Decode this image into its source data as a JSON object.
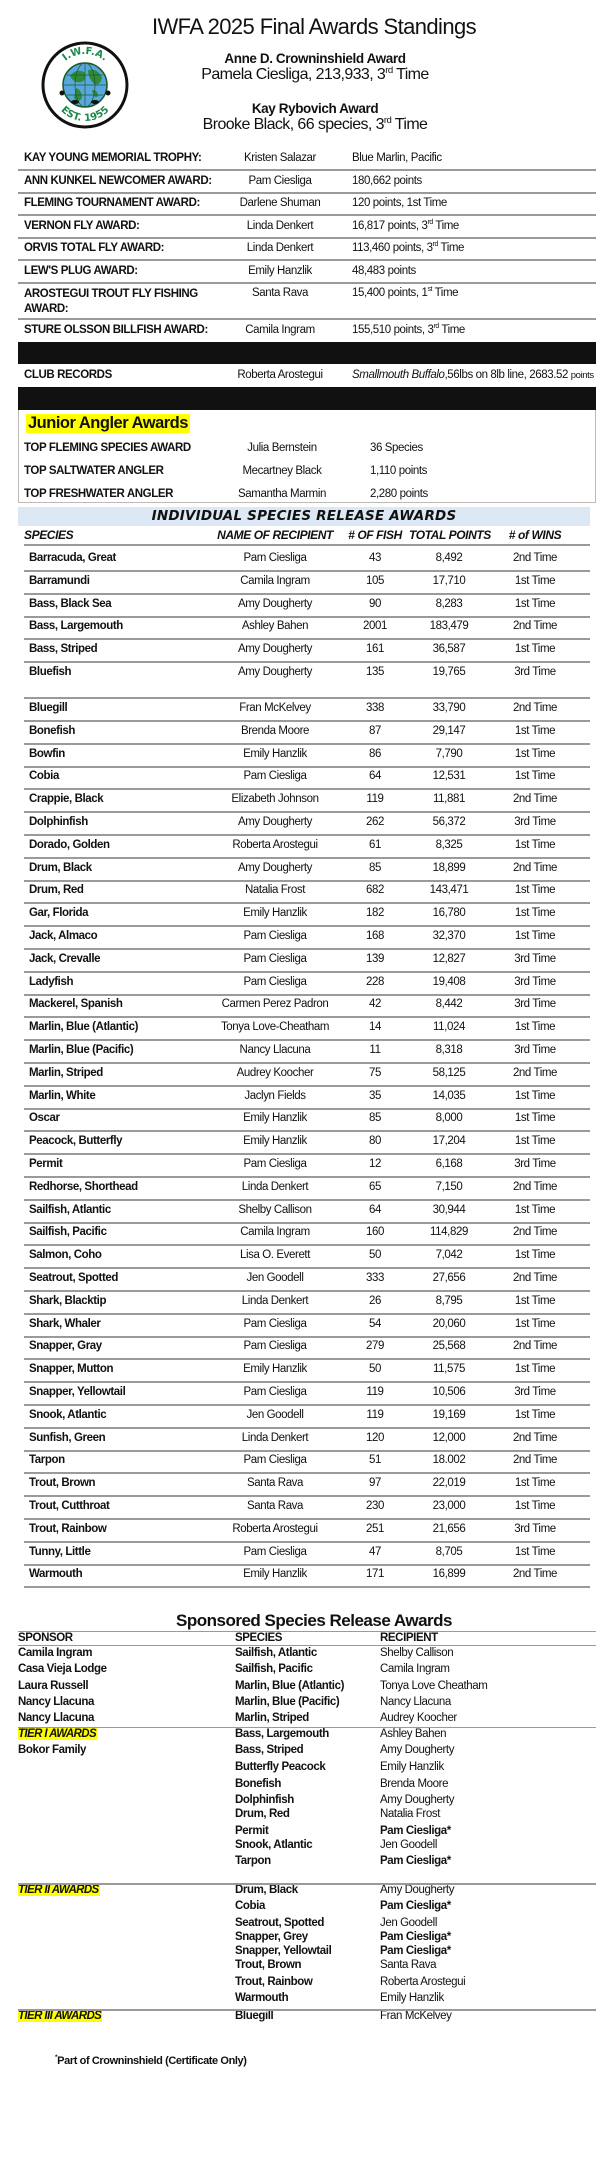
{
  "logo": {
    "top_text": "I.W.F.A.",
    "bottom_text": "EST. 1955",
    "ring_color": "#111111",
    "text_color": "#1a8a4a",
    "globe_water": "#5aa7e0",
    "globe_land": "#2e8b3a"
  },
  "header": {
    "title": "IWFA 2025 Final Awards Standings",
    "crowninshield_title": "Anne D. Crowninshield Award",
    "crowninshield_winner": "Pamela Ciesliga, 213,933, 3rd Time",
    "rybovich_title": "Kay Rybovich Award",
    "rybovich_winner": "Brooke Black, 66 species, 3rd Time"
  },
  "awards": [
    {
      "label": "KAY YOUNG MEMORIAL TROPHY:",
      "recipient": "Kristen Salazar",
      "value": "Blue Marlin, Pacific"
    },
    {
      "label": "ANN KUNKEL NEWCOMER AWARD:",
      "recipient": "Pam Ciesliga",
      "value": "180,662 points"
    },
    {
      "label": "FLEMING TOURNAMENT AWARD:",
      "recipient": "Darlene Shuman",
      "value": "120 points, 1st Time"
    },
    {
      "label": "VERNON FLY AWARD:",
      "recipient": "Linda Denkert",
      "value": "16,817 points, 3rd Time"
    },
    {
      "label": "ORVIS TOTAL FLY AWARD:",
      "recipient": "Linda Denkert",
      "value": "113,460 points, 3rd Time"
    },
    {
      "label": "LEW'S PLUG AWARD:",
      "recipient": "Emily Hanzlik",
      "value": "48,483 points"
    },
    {
      "label": "AROSTEGUI TROUT FLY FISHING AWARD:",
      "recipient": "Santa Rava",
      "value": "15,400 points, 1st Time"
    },
    {
      "label": "STURE OLSSON BILLFISH AWARD:",
      "recipient": "Camila Ingram",
      "value": "155,510 points, 3rd Time"
    }
  ],
  "club_records": {
    "label": "CLUB RECORDS",
    "recipient": "Roberta Arostegui",
    "species": "Smallmouth Buffalo",
    "detail": ",56lbs on 8lb line, 2683.52 ",
    "unit": "points"
  },
  "junior": {
    "title": "Junior Angler Awards",
    "rows": [
      {
        "label": "TOP FLEMING SPECIES AWARD",
        "recipient": "Julia Bernstein",
        "value": "36 Species"
      },
      {
        "label": "TOP SALTWATER ANGLER",
        "recipient": "Mecartney Black",
        "value": "1,110 points"
      },
      {
        "label": "TOP FRESHWATER ANGLER",
        "recipient": "Samantha Marmin",
        "value": "2,280 points"
      }
    ]
  },
  "species_table": {
    "title": "INDIVIDUAL SPECIES RELEASE AWARDS",
    "columns": [
      "SPECIES",
      "NAME OF RECIPIENT",
      "# OF FISH",
      "TOTAL POINTS",
      "# of WINS"
    ],
    "rows": [
      [
        "Barracuda, Great",
        "Pam Ciesliga",
        "43",
        "8,492",
        "2nd Time"
      ],
      [
        "Barramundi",
        "Camila Ingram",
        "105",
        "17,710",
        "1st Time"
      ],
      [
        "Bass, Black Sea",
        "Amy Dougherty",
        "90",
        "8,283",
        "1st Time"
      ],
      [
        "Bass, Largemouth",
        "Ashley Bahen",
        "2001",
        "183,479",
        "2nd Time"
      ],
      [
        "Bass, Striped",
        "Amy Dougherty",
        "161",
        "36,587",
        "1st Time"
      ],
      [
        "Bluefish",
        "Amy Dougherty",
        "135",
        "19,765",
        "3rd Time"
      ],
      [
        "Bluegill",
        "Fran McKelvey",
        "338",
        "33,790",
        "2nd Time"
      ],
      [
        "Bonefish",
        "Brenda Moore",
        "87",
        "29,147",
        "1st Time"
      ],
      [
        "Bowfin",
        "Emily Hanzlik",
        "86",
        "7,790",
        "1st Time"
      ],
      [
        "Cobia",
        "Pam Ciesliga",
        "64",
        "12,531",
        "1st Time"
      ],
      [
        "Crappie, Black",
        "Elizabeth Johnson",
        "119",
        "11,881",
        "2nd Time"
      ],
      [
        "Dolphinfish",
        "Amy Dougherty",
        "262",
        "56,372",
        "3rd Time"
      ],
      [
        "Dorado, Golden",
        "Roberta Arostegui",
        "61",
        "8,325",
        "1st Time"
      ],
      [
        "Drum, Black",
        "Amy Dougherty",
        "85",
        "18,899",
        "2nd Time"
      ],
      [
        "Drum, Red",
        "Natalia Frost",
        "682",
        "143,471",
        "1st Time"
      ],
      [
        "Gar, Florida",
        "Emily Hanzlik",
        "182",
        "16,780",
        "1st Time"
      ],
      [
        "Jack, Almaco",
        "Pam Ciesliga",
        "168",
        "32,370",
        "1st Time"
      ],
      [
        "Jack, Crevalle",
        "Pam Ciesliga",
        "139",
        "12,827",
        "3rd Time"
      ],
      [
        "Ladyfish",
        "Pam Ciesliga",
        "228",
        "19,408",
        "3rd Time"
      ],
      [
        "Mackerel, Spanish",
        "Carmen Perez Padron",
        "42",
        "8,442",
        "3rd Time"
      ],
      [
        "Marlin, Blue (Atlantic)",
        "Tonya Love-Cheatham",
        "14",
        "11,024",
        "1st Time"
      ],
      [
        "Marlin, Blue (Pacific)",
        "Nancy Llacuna",
        "11",
        "8,318",
        "3rd Time"
      ],
      [
        "Marlin, Striped",
        "Audrey Koocher",
        "75",
        "58,125",
        "2nd Time"
      ],
      [
        "Marlin, White",
        "Jaclyn Fields",
        "35",
        "14,035",
        "1st Time"
      ],
      [
        "Oscar",
        "Emily Hanzlik",
        "85",
        "8,000",
        "1st Time"
      ],
      [
        "Peacock, Butterfly",
        "Emily Hanzlik",
        "80",
        "17,204",
        "1st Time"
      ],
      [
        "Permit",
        "Pam Ciesliga",
        "12",
        "6,168",
        "3rd Time"
      ],
      [
        "Redhorse, Shorthead",
        "Linda Denkert",
        "65",
        "7,150",
        "2nd Time"
      ],
      [
        "Sailfish, Atlantic",
        "Shelby Callison",
        "64",
        "30,944",
        "1st Time"
      ],
      [
        "Sailfish, Pacific",
        "Camila Ingram",
        "160",
        "114,829",
        "2nd Time"
      ],
      [
        "Salmon, Coho",
        "Lisa O. Everett",
        "50",
        "7,042",
        "1st Time"
      ],
      [
        "Seatrout, Spotted",
        "Jen Goodell",
        "333",
        "27,656",
        "2nd Time"
      ],
      [
        "Shark, Blacktip",
        "Linda Denkert",
        "26",
        "8,795",
        "1st Time"
      ],
      [
        "Shark, Whaler",
        "Pam Ciesliga",
        "54",
        "20,060",
        "1st Time"
      ],
      [
        "Snapper, Gray",
        "Pam Ciesliga",
        "279",
        "25,568",
        "2nd Time"
      ],
      [
        "Snapper, Mutton",
        "Emily Hanzlik",
        "50",
        "11,575",
        "1st Time"
      ],
      [
        "Snapper, Yellowtail",
        "Pam Ciesliga",
        "119",
        "10,506",
        "3rd Time"
      ],
      [
        "Snook, Atlantic",
        "Jen Goodell",
        "119",
        "19,169",
        "1st Time"
      ],
      [
        "Sunfish, Green",
        "Linda Denkert",
        "120",
        "12,000",
        "2nd Time"
      ],
      [
        "Tarpon",
        "Pam Ciesliga",
        "51",
        "18.002",
        "2nd Time"
      ],
      [
        "Trout, Brown",
        "Santa Rava",
        "97",
        "22,019",
        "1st Time"
      ],
      [
        "Trout, Cutthroat",
        "Santa Rava",
        "230",
        "23,000",
        "1st Time"
      ],
      [
        "Trout, Rainbow",
        "Roberta Arostegui",
        "251",
        "21,656",
        "3rd Time"
      ],
      [
        "Tunny, Little",
        "Pam Ciesliga",
        "47",
        "8,705",
        "1st Time"
      ],
      [
        "Warmouth",
        "Emily Hanzlik",
        "171",
        "16,899",
        "2nd Time"
      ]
    ]
  },
  "sponsored": {
    "title": "Sponsored Species Release Awards",
    "columns": [
      "SPONSOR",
      "SPECIES",
      "RECIPIENT"
    ],
    "rows": [
      {
        "sponsor": "Camila Ingram",
        "species": "Sailfish, Atlantic",
        "recipient": "Shelby Callison"
      },
      {
        "sponsor": "Casa Vieja Lodge",
        "species": "Sailfish, Pacific",
        "recipient": "Camila Ingram"
      },
      {
        "sponsor": "Laura Russell",
        "species": "Marlin, Blue (Atlantic)",
        "recipient": "Tonya Love Cheatham"
      },
      {
        "sponsor": "Nancy Llacuna",
        "species": "Marlin, Blue (Pacific)",
        "recipient": "Nancy Llacuna"
      },
      {
        "sponsor": "Nancy Llacuna",
        "species": "Marlin, Striped",
        "recipient": "Audrey Koocher"
      }
    ],
    "tiers": [
      {
        "label": "TIER I AWARDS",
        "sponsor": "Bokor Family",
        "rows": [
          {
            "species": "Bass, Largemouth",
            "recipient": "Ashley Bahen"
          },
          {
            "species": "Bass, Striped",
            "recipient": "Amy Dougherty"
          },
          {
            "species": "Butterfly Peacock",
            "recipient": "Emily Hanzlik"
          },
          {
            "species": "Bonefish",
            "recipient": "Brenda Moore"
          },
          {
            "species": "Dolphinfish",
            "recipient": "Amy Dougherty"
          },
          {
            "species": "Drum, Red",
            "recipient": "Natalia Frost"
          },
          {
            "species": "Permit",
            "recipient": "Pam Ciesliga*"
          },
          {
            "species": "Snook, Atlantic",
            "recipient": "Jen Goodell"
          },
          {
            "species": "Tarpon",
            "recipient": "Pam Ciesliga*"
          }
        ]
      },
      {
        "label": "TIER II AWARDS",
        "rows": [
          {
            "species": "Drum, Black",
            "recipient": "Amy Dougherty"
          },
          {
            "species": "Cobia",
            "recipient": "Pam Ciesliga*"
          },
          {
            "species": "Seatrout, Spotted",
            "recipient": "Jen Goodell"
          },
          {
            "species": "Snapper, Grey",
            "recipient": "Pam Ciesliga*"
          },
          {
            "species": "Snapper, Yellowtail",
            "recipient": "Pam Ciesliga*"
          },
          {
            "species": "Trout, Brown",
            "recipient": "Santa Rava"
          },
          {
            "species": "Trout, Rainbow",
            "recipient": "Roberta Arostegui"
          },
          {
            "species": "Warmouth",
            "recipient": "Emily Hanzlik"
          }
        ]
      },
      {
        "label": "TIER III AWARDS",
        "rows": [
          {
            "species": "Bluegill",
            "recipient": "Fran McKelvey"
          }
        ]
      }
    ],
    "footnote_mark": "*",
    "footnote": "Part of Crowninshield (Certificate Only)"
  }
}
